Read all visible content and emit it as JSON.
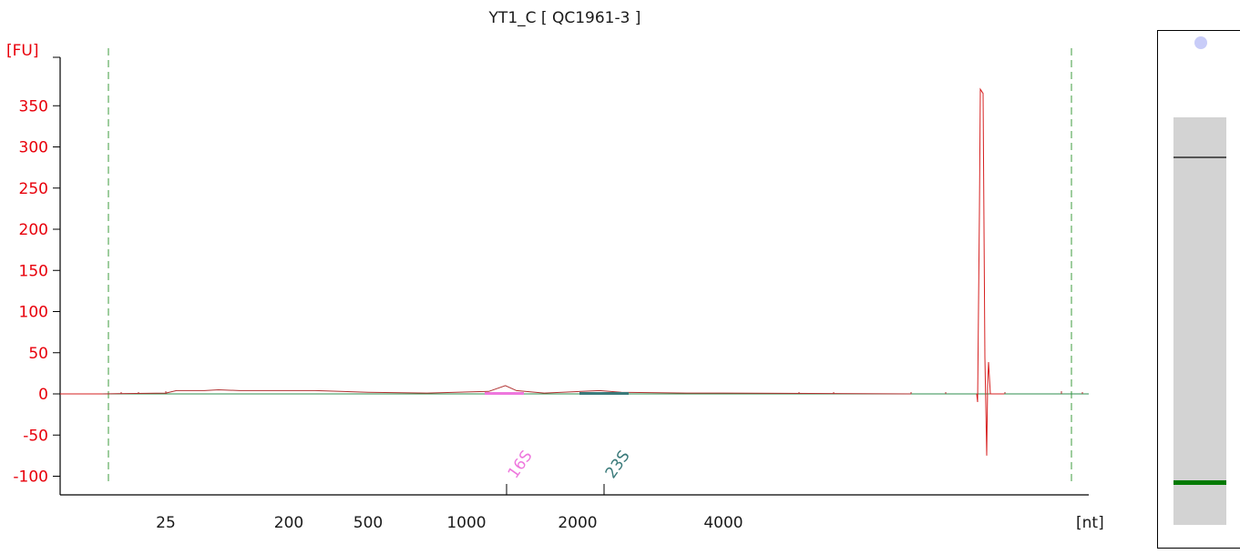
{
  "chart_data": {
    "type": "line",
    "title": "YT1_C  [ QC1961-3 ]",
    "ylabel": "[FU]",
    "xlabel": "[nt]",
    "ylim": [
      -120,
      380
    ],
    "y_ticks": [
      -100,
      -50,
      0,
      50,
      100,
      150,
      200,
      250,
      300,
      350
    ],
    "x_ticks": [
      "25",
      "200",
      "500",
      "1000",
      "2000",
      "4000"
    ],
    "x_scale": "nonlinear (electropherogram size axis)",
    "grid": false,
    "peaks": [
      {
        "name": "16S",
        "color": "#ee77dd"
      },
      {
        "name": "23S",
        "color": "#3a7a7a"
      }
    ],
    "series": [
      {
        "color": "#b03030",
        "points": [
          [
            15,
            0
          ],
          [
            25,
            1
          ],
          [
            40,
            4
          ],
          [
            80,
            4
          ],
          [
            100,
            5
          ],
          [
            130,
            4
          ],
          [
            200,
            4
          ],
          [
            300,
            4
          ],
          [
            500,
            2
          ],
          [
            800,
            1
          ],
          [
            1200,
            3
          ],
          [
            1350,
            10
          ],
          [
            1450,
            4
          ],
          [
            1700,
            1
          ],
          [
            2300,
            4
          ],
          [
            2600,
            2
          ],
          [
            3500,
            1
          ],
          [
            4000,
            1
          ],
          [
            6000,
            0
          ]
        ]
      }
    ],
    "marker_spike": {
      "max": 370,
      "min": -75,
      "color": "#d62020"
    }
  },
  "gel": {
    "lane_color": "#d3d3d3",
    "upper_band_color": "#555555",
    "marker_band_color": "#007a00",
    "top_dot_color": "#c8ccf8"
  }
}
